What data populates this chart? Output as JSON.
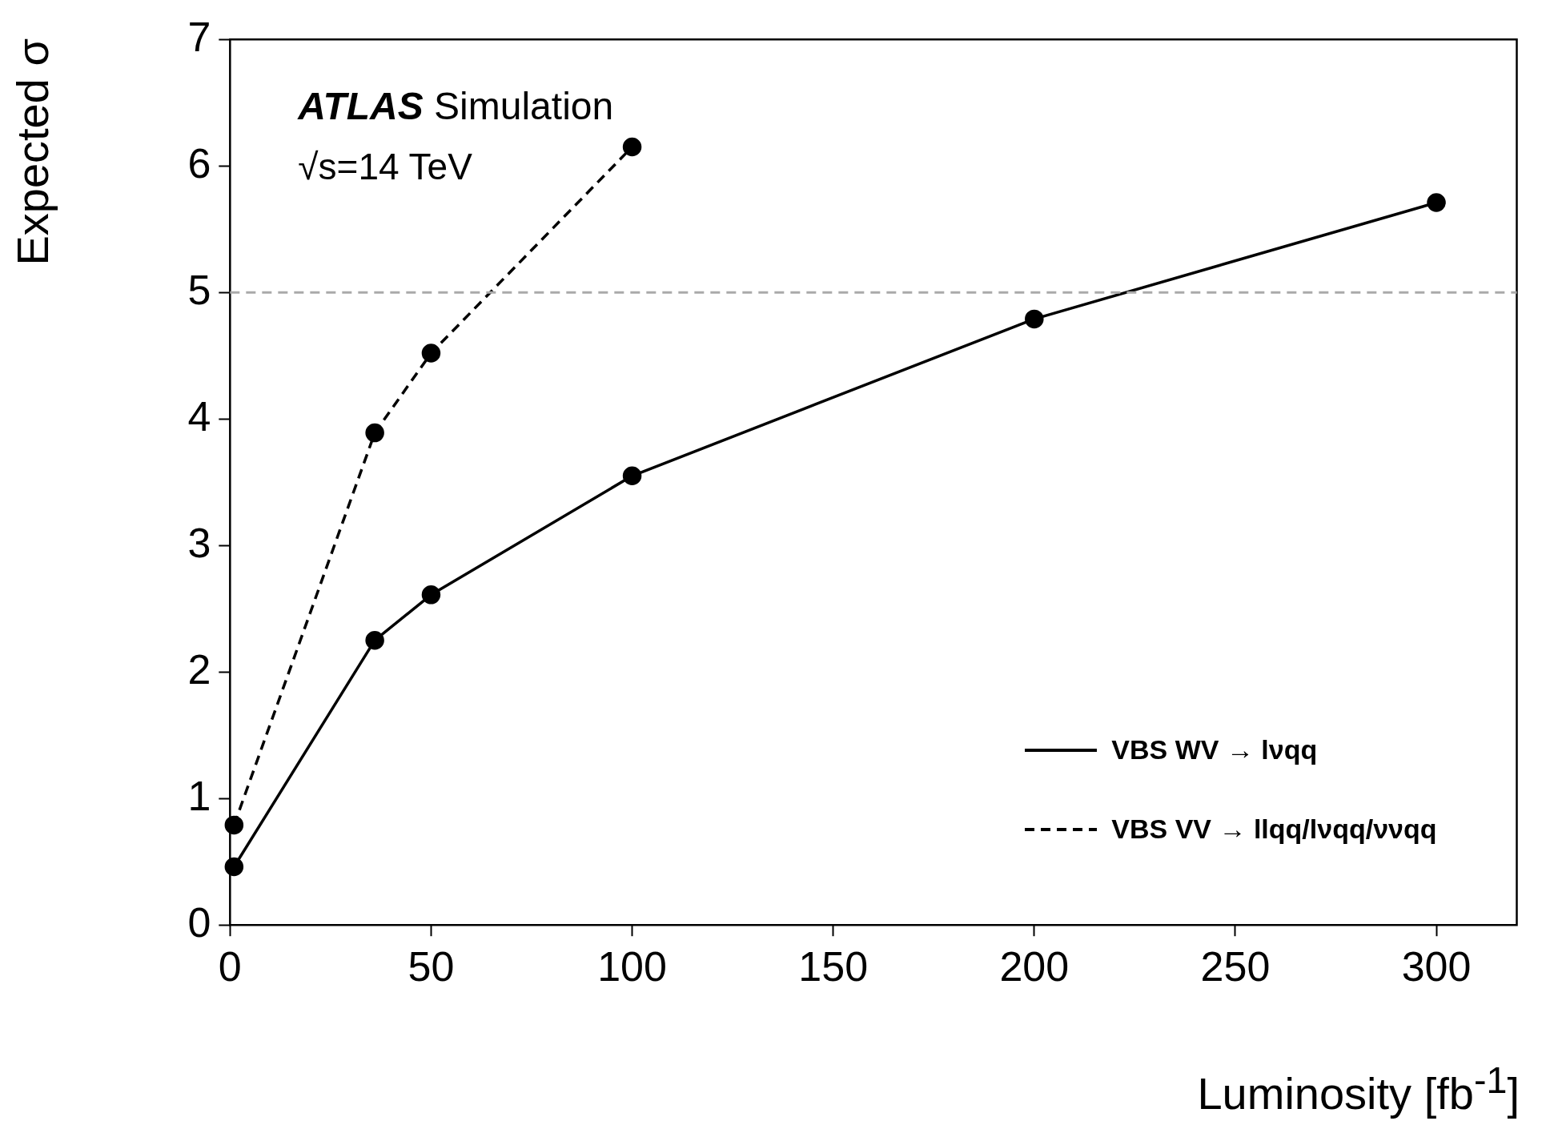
{
  "chart_data": {
    "type": "line",
    "xlabel": "Luminosity [fb$^{-1}$]",
    "ylabel": "Expected σ",
    "annotations": [
      "ATLAS Simulation",
      "√s=14 TeV"
    ],
    "series": [
      {
        "name": "VBS WV → lνqq",
        "color": "#000000",
        "x": [
          1,
          36,
          50,
          100,
          200,
          300
        ],
        "values": [
          0.46,
          2.25,
          2.61,
          3.55,
          4.79,
          5.71
        ],
        "line_style": "solid"
      },
      {
        "name": "VBS VV → llqq/lνqq/ννqq",
        "color": "#000000",
        "x": [
          1,
          36,
          50,
          100
        ],
        "values": [
          0.79,
          3.89,
          4.52,
          6.15
        ],
        "line_style": "dashed"
      }
    ],
    "marker": "circle",
    "xlim": [
      0,
      320
    ],
    "xticks": [
      0,
      50,
      100,
      150,
      200,
      250,
      300
    ],
    "ylim": [
      0,
      7
    ],
    "yticks": [
      0,
      1,
      2,
      3,
      4,
      5,
      6,
      7
    ],
    "ref_lines": [
      {
        "axis": "y",
        "value": 5,
        "label": null,
        "color": "#aaaaaa",
        "line_style": "dashed"
      }
    ],
    "grid": false,
    "legend": "bottom right"
  }
}
